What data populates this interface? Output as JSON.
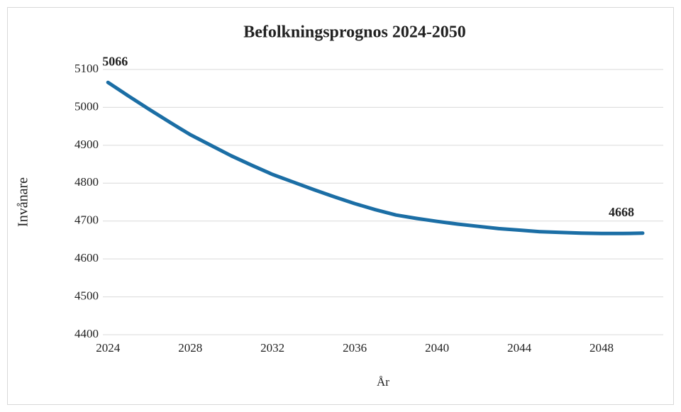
{
  "chart_data": {
    "type": "line",
    "title": "Befolkningsprognos 2024-2050",
    "xlabel": "År",
    "ylabel": "Invånare",
    "x": [
      2024,
      2025,
      2026,
      2027,
      2028,
      2029,
      2030,
      2031,
      2032,
      2033,
      2034,
      2035,
      2036,
      2037,
      2038,
      2039,
      2040,
      2041,
      2042,
      2043,
      2044,
      2045,
      2046,
      2047,
      2048,
      2049,
      2050
    ],
    "series": [
      {
        "name": "Invånare",
        "color": "#1b6ea5",
        "values": [
          5066,
          5030,
          4995,
          4961,
          4928,
          4900,
          4872,
          4847,
          4823,
          4803,
          4783,
          4764,
          4746,
          4730,
          4716,
          4707,
          4699,
          4692,
          4686,
          4680,
          4676,
          4672,
          4670,
          4668,
          4667,
          4667,
          4668
        ]
      }
    ],
    "xlim": [
      2023.75,
      2051
    ],
    "xticks": [
      2024,
      2028,
      2032,
      2036,
      2040,
      2044,
      2048
    ],
    "ylim": [
      4400,
      5100
    ],
    "yticks": [
      4400,
      4500,
      4600,
      4700,
      4800,
      4900,
      5000,
      5100
    ],
    "grid": true
  }
}
